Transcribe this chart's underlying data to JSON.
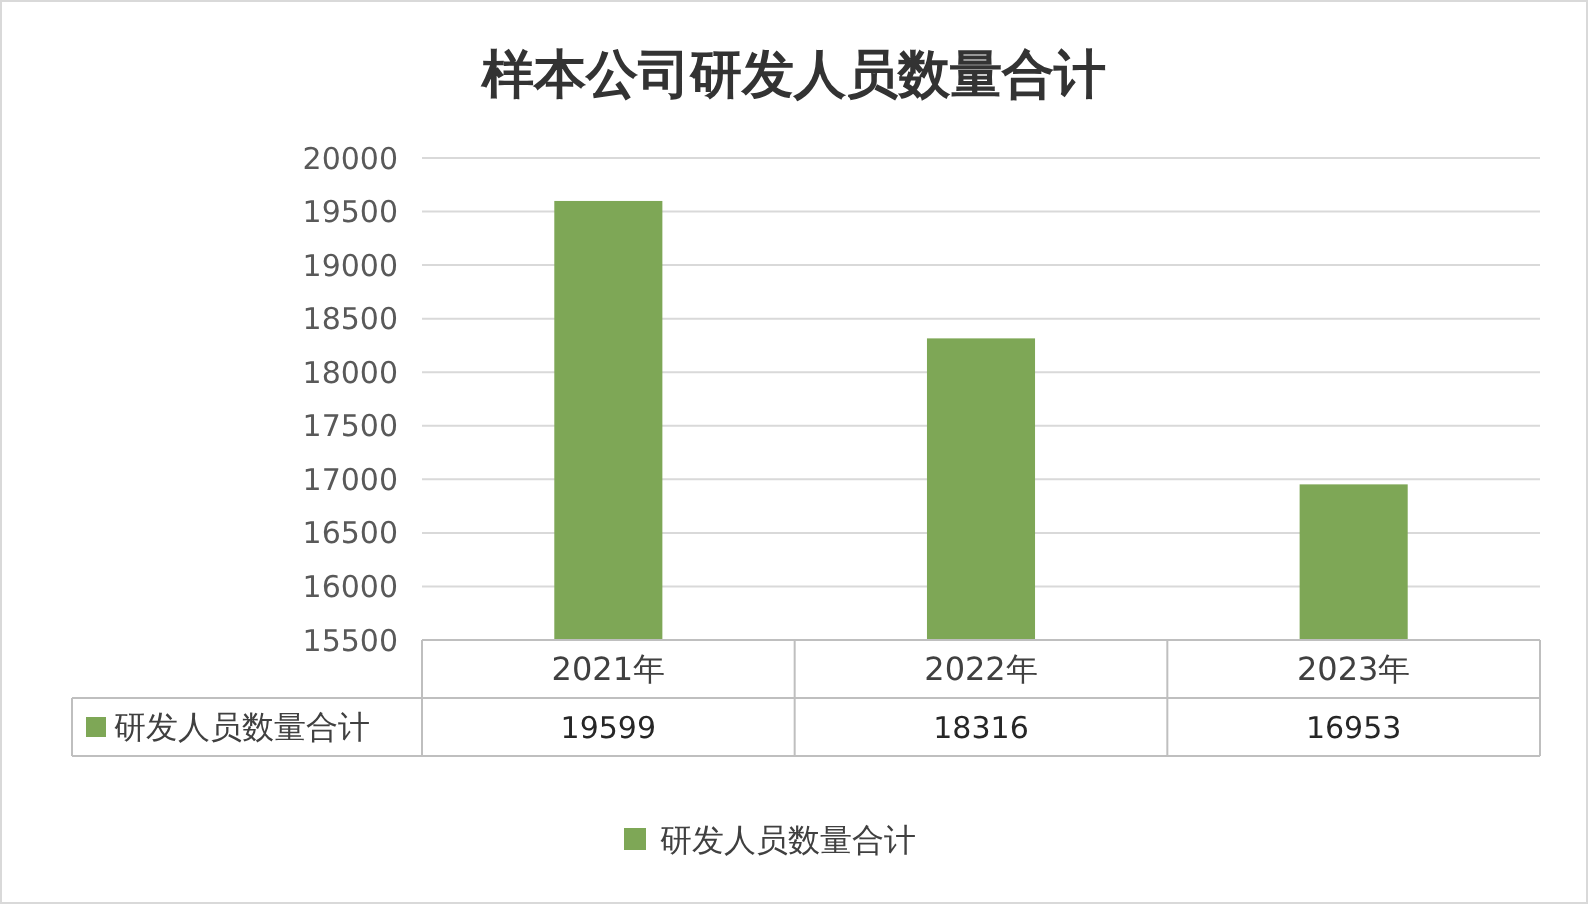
{
  "chart_data": {
    "type": "bar",
    "title": "样本公司研发人员数量合计",
    "categories": [
      "2021年",
      "2022年",
      "2023年"
    ],
    "series": [
      {
        "name": "研发人员数量合计",
        "color": "#7ea756",
        "values": [
          19599,
          18316,
          16953
        ]
      }
    ],
    "ylim": [
      15500,
      20000
    ],
    "yticks": [
      15500,
      16000,
      16500,
      17000,
      17500,
      18000,
      18500,
      19000,
      19500,
      20000
    ],
    "grid": "y",
    "legend": "bottom",
    "data_labels": true
  }
}
